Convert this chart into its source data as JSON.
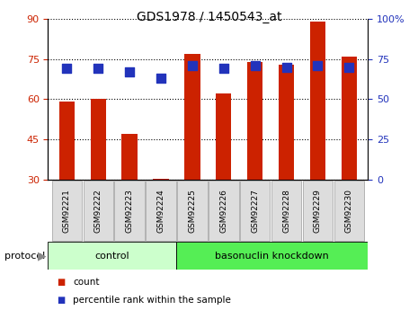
{
  "title": "GDS1978 / 1450543_at",
  "samples": [
    "GSM92221",
    "GSM92222",
    "GSM92223",
    "GSM92224",
    "GSM92225",
    "GSM92226",
    "GSM92227",
    "GSM92228",
    "GSM92229",
    "GSM92230"
  ],
  "count_values": [
    59,
    60,
    47,
    30.5,
    77,
    62,
    74,
    73,
    89,
    76
  ],
  "percentile_values": [
    69,
    69,
    67,
    63,
    71,
    69,
    71,
    70,
    71,
    70
  ],
  "left_ylim": [
    30,
    90
  ],
  "right_ylim": [
    0,
    100
  ],
  "left_yticks": [
    30,
    45,
    60,
    75,
    90
  ],
  "right_yticks": [
    0,
    25,
    50,
    75,
    100
  ],
  "right_yticklabels": [
    "0",
    "25",
    "50",
    "75",
    "100%"
  ],
  "bar_color": "#CC2200",
  "dot_color": "#2233BB",
  "bar_width": 0.5,
  "dot_size": 45,
  "ctrl_count": 4,
  "baso_count": 6,
  "ctrl_color": "#CCFFCC",
  "baso_color": "#55EE55",
  "ctrl_label": "control",
  "baso_label": "basonuclin knockdown",
  "protocol_label": "protocol",
  "legend_count_label": "count",
  "legend_percentile_label": "percentile rank within the sample",
  "tick_label_color_left": "#CC2200",
  "tick_label_color_right": "#2233BB",
  "xtick_bg": "#DDDDDD",
  "xtick_border": "#AAAAAA"
}
